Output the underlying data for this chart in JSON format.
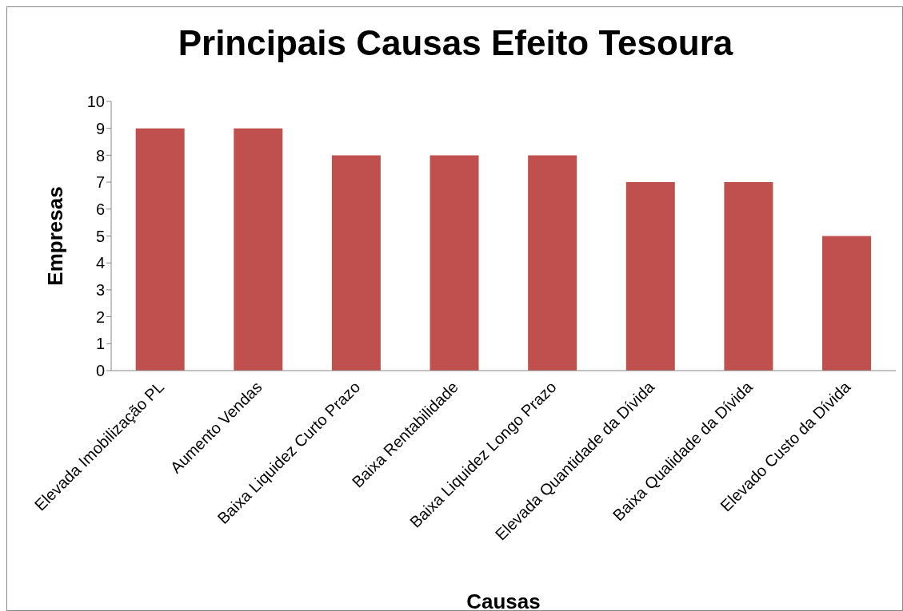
{
  "chart_data": {
    "type": "bar",
    "title": "Principais Causas Efeito Tesoura",
    "xlabel": "Causas",
    "ylabel": "Empresas",
    "categories": [
      "Elevada Imobilização PL",
      "Aumento Vendas",
      "Baixa Liquidez Curto Prazo",
      "Baixa Rentabilidade",
      "Baixa Liquidez Longo Prazo",
      "Elevada Quantidade da Dívida",
      "Baixa Qualidade da Dívida",
      "Elevado Custo da Dívida"
    ],
    "values": [
      9,
      9,
      8,
      8,
      8,
      7,
      7,
      5
    ],
    "color": "#c0504d",
    "ylim": [
      0,
      10
    ],
    "yticks": [
      0,
      1,
      2,
      3,
      4,
      5,
      6,
      7,
      8,
      9,
      10
    ]
  }
}
